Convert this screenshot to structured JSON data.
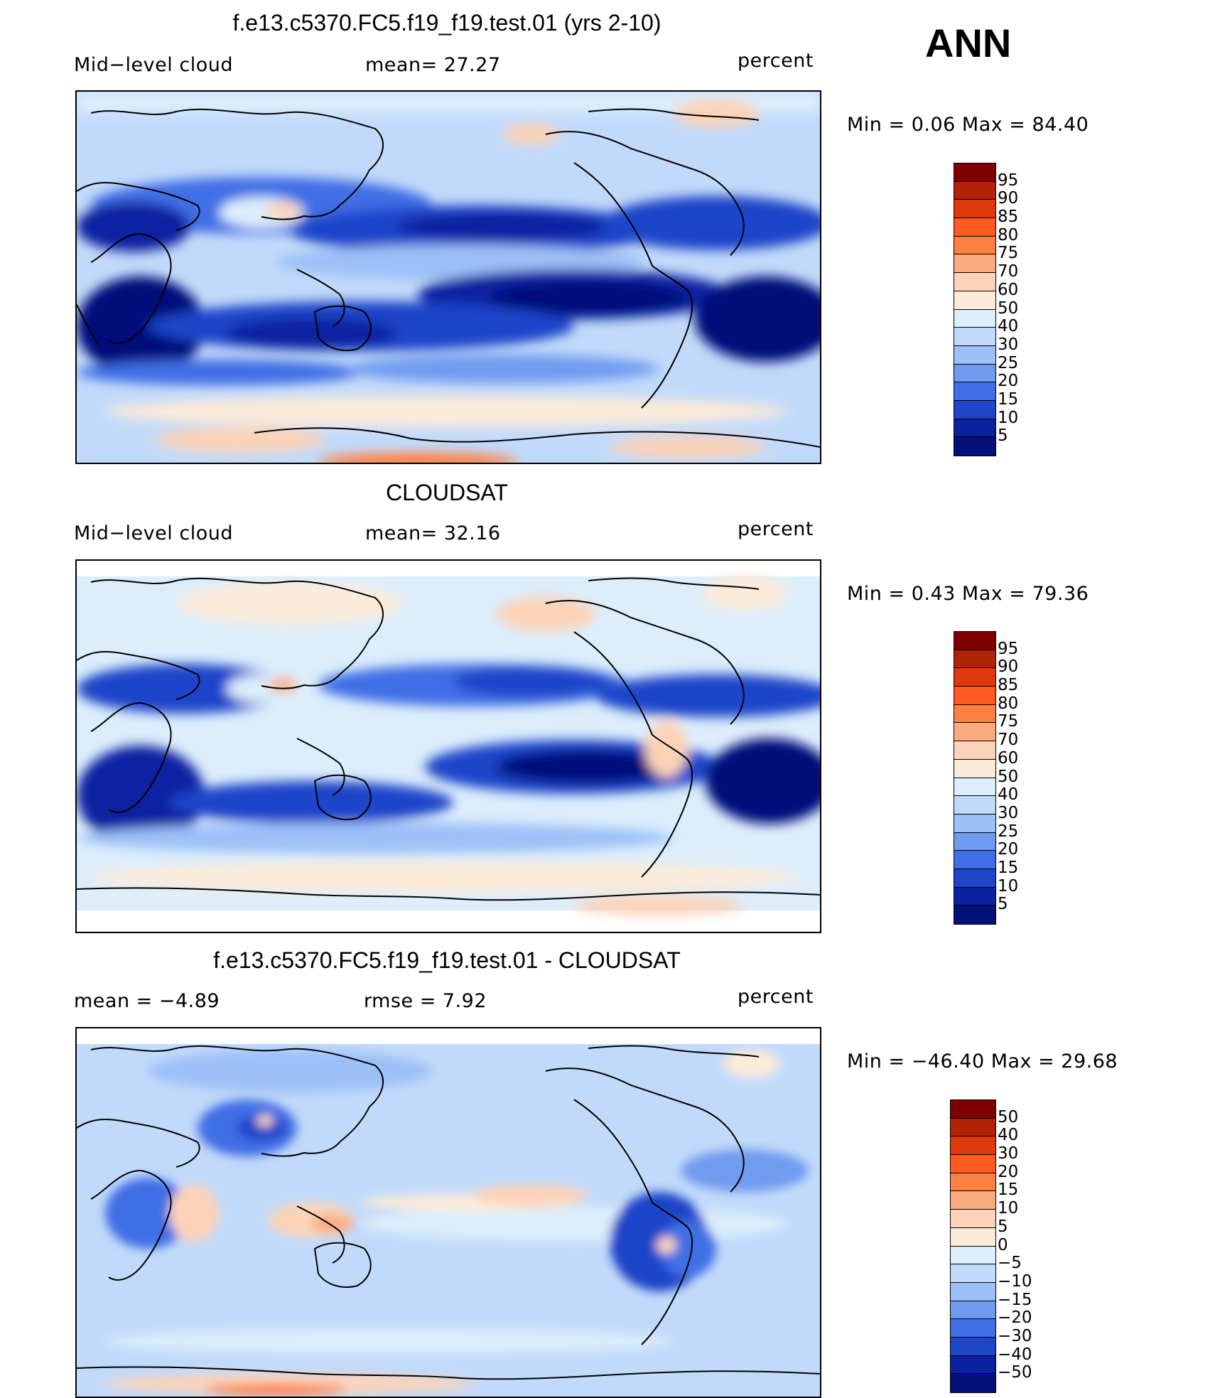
{
  "season": "ANN",
  "panels": [
    {
      "title": "f.e13.c5370.FC5.f19_f19.test.01 (yrs 2-10)",
      "left_label": "Mid−level cloud",
      "center_label": "mean=   27.27",
      "units": "percent",
      "minmax": "Min =    0.06  Max =   84.40",
      "levels": [
        "95",
        "90",
        "85",
        "80",
        "75",
        "70",
        "60",
        "50",
        "40",
        "30",
        "25",
        "20",
        "15",
        "10",
        "5"
      ]
    },
    {
      "title": "CLOUDSAT",
      "left_label": "Mid−level cloud",
      "center_label": "mean=   32.16",
      "units": "percent",
      "minmax": "Min =    0.43  Max =   79.36",
      "levels": [
        "95",
        "90",
        "85",
        "80",
        "75",
        "70",
        "60",
        "50",
        "40",
        "30",
        "25",
        "20",
        "15",
        "10",
        "5"
      ]
    },
    {
      "title": "f.e13.c5370.FC5.f19_f19.test.01 - CLOUDSAT",
      "left_label": "mean =   −4.89",
      "center_label": "rmse =     7.92",
      "units": "percent",
      "minmax": "Min = −46.40  Max =   29.68",
      "levels": [
        "50",
        "40",
        "30",
        "20",
        "15",
        "10",
        "5",
        "0",
        "−5",
        "−10",
        "−15",
        "−20",
        "−30",
        "−40",
        "−50"
      ]
    }
  ],
  "colors": {
    "abs_scale": [
      "#7f0000",
      "#b22205",
      "#e0380d",
      "#ff5a1f",
      "#ff8040",
      "#fcaa80",
      "#fcd3b8",
      "#fdebd9",
      "#dceefc",
      "#c2dafa",
      "#9cc0f7",
      "#6f9bef",
      "#3f6ee5",
      "#1f45c9",
      "#0a22a0",
      "#04107a"
    ],
    "diff_scale": [
      "#7f0000",
      "#b22205",
      "#e0380d",
      "#ff5a1f",
      "#ff8040",
      "#fcaa80",
      "#fcd3b8",
      "#fdebd9",
      "#dceefc",
      "#c2dafa",
      "#9cc0f7",
      "#6f9bef",
      "#3f6ee5",
      "#1f45c9",
      "#0a22a0",
      "#04107a"
    ]
  }
}
